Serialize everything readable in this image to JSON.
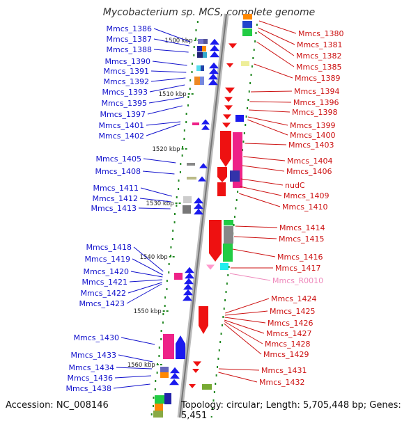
{
  "title": "Mycobacterium sp. MCS, complete genome",
  "accession": "Accession: NC_008146",
  "summary": "Topology: circular; Length: 5,705,448 bp; Genes: 5,451",
  "scale_labels": [
    "1500 kbp",
    "1510 kbp",
    "1520 kbp",
    "1530 kbp",
    "1540 kbp",
    "1550 kbp",
    "1560 kbp"
  ],
  "left_genes": [
    "Mmcs_1386",
    "Mmcs_1387",
    "Mmcs_1388",
    "Mmcs_1390",
    "Mmcs_1391",
    "Mmcs_1392",
    "Mmcs_1393",
    "Mmcs_1395",
    "Mmcs_1397",
    "Mmcs_1401",
    "Mmcs_1402",
    "Mmcs_1405",
    "Mmcs_1408",
    "Mmcs_1411",
    "Mmcs_1412",
    "Mmcs_1413",
    "Mmcs_1418",
    "Mmcs_1419",
    "Mmcs_1420",
    "Mmcs_1421",
    "Mmcs_1422",
    "Mmcs_1423",
    "Mmcs_1430",
    "Mmcs_1433",
    "Mmcs_1434",
    "Mmcs_1436",
    "Mmcs_1438"
  ],
  "right_genes": [
    "Mmcs_1380",
    "Mmcs_1381",
    "Mmcs_1382",
    "Mmcs_1385",
    "Mmcs_1389",
    "Mmcs_1394",
    "Mmcs_1396",
    "Mmcs_1398",
    "Mmcs_1399",
    "Mmcs_1400",
    "Mmcs_1403",
    "Mmcs_1404",
    "Mmcs_1406",
    "nudC",
    "Mmcs_1409",
    "Mmcs_1410",
    "Mmcs_1414",
    "Mmcs_1415",
    "Mmcs_1416",
    "Mmcs_1417",
    "Mmcs_R0010",
    "Mmcs_1424",
    "Mmcs_1425",
    "Mmcs_1426",
    "Mmcs_1427",
    "Mmcs_1428",
    "Mmcs_1429",
    "Mmcs_1431",
    "Mmcs_1432"
  ],
  "colors": {
    "left_label": "#1010cc",
    "right_label": "#cc1010",
    "rna_label": "#ee88bb",
    "axis": "#999999",
    "tick": "#228822"
  }
}
